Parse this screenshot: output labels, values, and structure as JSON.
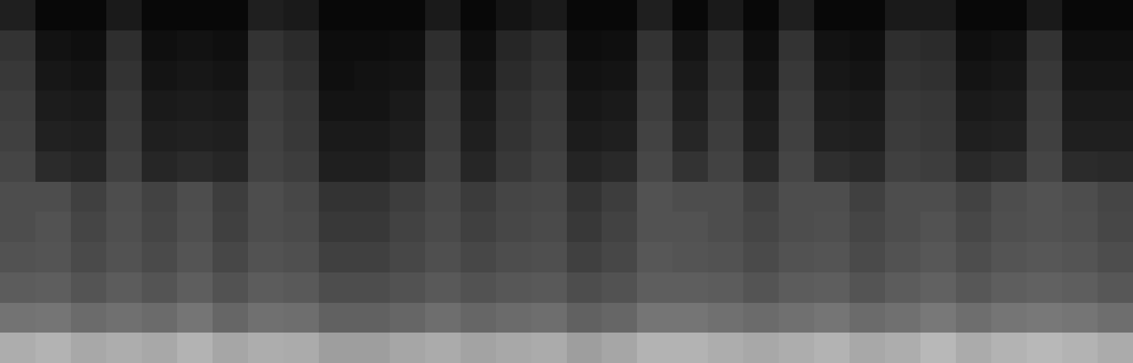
{
  "chart_data": {
    "type": "heatmap",
    "tick_labels": false,
    "grid": false,
    "x": [
      0,
      1,
      2,
      3,
      4,
      5,
      6,
      7,
      8,
      9,
      10,
      11,
      12,
      13,
      14,
      15,
      16,
      17,
      18,
      19,
      20,
      21,
      22,
      23,
      24,
      25,
      26,
      27,
      28,
      29,
      30,
      31
    ],
    "y": [
      0,
      1,
      2,
      3,
      4,
      5,
      6,
      7,
      8,
      9,
      10,
      11
    ],
    "xlim": [
      -0.5,
      31.5
    ],
    "ylim": [
      -0.5,
      11.5
    ],
    "zlim": [
      0,
      1
    ],
    "cells": [
      [
        0.68,
        0.7,
        0.66,
        0.68,
        0.66,
        0.7,
        0.65,
        0.68,
        0.67,
        0.62,
        0.62,
        0.65,
        0.67,
        0.64,
        0.66,
        0.67,
        0.62,
        0.65,
        0.7,
        0.7,
        0.68,
        0.66,
        0.68,
        0.7,
        0.66,
        0.68,
        0.72,
        0.67,
        0.7,
        0.72,
        0.7,
        0.67
      ],
      [
        0.45,
        0.46,
        0.42,
        0.44,
        0.42,
        0.46,
        0.4,
        0.44,
        0.43,
        0.38,
        0.38,
        0.4,
        0.43,
        0.4,
        0.42,
        0.43,
        0.38,
        0.4,
        0.46,
        0.46,
        0.44,
        0.42,
        0.44,
        0.46,
        0.42,
        0.44,
        0.47,
        0.43,
        0.46,
        0.47,
        0.46,
        0.43
      ],
      [
        0.36,
        0.37,
        0.33,
        0.36,
        0.33,
        0.37,
        0.32,
        0.36,
        0.35,
        0.3,
        0.3,
        0.32,
        0.35,
        0.32,
        0.34,
        0.35,
        0.3,
        0.32,
        0.37,
        0.37,
        0.36,
        0.33,
        0.36,
        0.37,
        0.33,
        0.36,
        0.38,
        0.34,
        0.37,
        0.38,
        0.37,
        0.34
      ],
      [
        0.32,
        0.33,
        0.29,
        0.32,
        0.29,
        0.33,
        0.28,
        0.32,
        0.31,
        0.25,
        0.25,
        0.28,
        0.31,
        0.28,
        0.3,
        0.31,
        0.25,
        0.28,
        0.34,
        0.33,
        0.32,
        0.29,
        0.32,
        0.33,
        0.29,
        0.32,
        0.34,
        0.3,
        0.33,
        0.34,
        0.33,
        0.3
      ],
      [
        0.3,
        0.32,
        0.27,
        0.31,
        0.27,
        0.31,
        0.25,
        0.3,
        0.29,
        0.22,
        0.22,
        0.26,
        0.29,
        0.25,
        0.28,
        0.29,
        0.22,
        0.26,
        0.32,
        0.32,
        0.3,
        0.27,
        0.3,
        0.31,
        0.27,
        0.3,
        0.32,
        0.28,
        0.31,
        0.32,
        0.31,
        0.28
      ],
      [
        0.3,
        0.3,
        0.25,
        0.3,
        0.26,
        0.3,
        0.24,
        0.3,
        0.28,
        0.2,
        0.2,
        0.24,
        0.28,
        0.23,
        0.27,
        0.28,
        0.2,
        0.24,
        0.32,
        0.3,
        0.3,
        0.25,
        0.3,
        0.3,
        0.25,
        0.3,
        0.3,
        0.26,
        0.3,
        0.32,
        0.3,
        0.27
      ],
      [
        0.27,
        0.17,
        0.15,
        0.25,
        0.15,
        0.17,
        0.15,
        0.26,
        0.24,
        0.12,
        0.12,
        0.15,
        0.25,
        0.15,
        0.22,
        0.25,
        0.14,
        0.16,
        0.28,
        0.2,
        0.26,
        0.16,
        0.27,
        0.18,
        0.16,
        0.25,
        0.24,
        0.16,
        0.18,
        0.27,
        0.17,
        0.16
      ],
      [
        0.25,
        0.13,
        0.12,
        0.23,
        0.12,
        0.13,
        0.12,
        0.25,
        0.22,
        0.1,
        0.1,
        0.12,
        0.23,
        0.12,
        0.2,
        0.23,
        0.11,
        0.12,
        0.26,
        0.15,
        0.24,
        0.12,
        0.25,
        0.13,
        0.12,
        0.23,
        0.22,
        0.12,
        0.13,
        0.25,
        0.12,
        0.12
      ],
      [
        0.24,
        0.11,
        0.1,
        0.22,
        0.1,
        0.11,
        0.1,
        0.24,
        0.21,
        0.08,
        0.08,
        0.1,
        0.22,
        0.1,
        0.19,
        0.22,
        0.09,
        0.1,
        0.24,
        0.12,
        0.22,
        0.1,
        0.24,
        0.11,
        0.1,
        0.22,
        0.21,
        0.1,
        0.11,
        0.24,
        0.1,
        0.1
      ],
      [
        0.22,
        0.09,
        0.08,
        0.2,
        0.08,
        0.09,
        0.08,
        0.22,
        0.19,
        0.06,
        0.07,
        0.08,
        0.2,
        0.08,
        0.17,
        0.2,
        0.07,
        0.08,
        0.22,
        0.1,
        0.2,
        0.08,
        0.22,
        0.09,
        0.08,
        0.2,
        0.19,
        0.08,
        0.09,
        0.22,
        0.08,
        0.08
      ],
      [
        0.2,
        0.07,
        0.06,
        0.18,
        0.06,
        0.07,
        0.06,
        0.2,
        0.17,
        0.05,
        0.05,
        0.06,
        0.18,
        0.06,
        0.15,
        0.18,
        0.05,
        0.06,
        0.2,
        0.08,
        0.18,
        0.06,
        0.2,
        0.07,
        0.06,
        0.18,
        0.17,
        0.06,
        0.07,
        0.2,
        0.06,
        0.06
      ],
      [
        0.12,
        0.03,
        0.03,
        0.1,
        0.03,
        0.03,
        0.03,
        0.12,
        0.1,
        0.03,
        0.03,
        0.03,
        0.1,
        0.03,
        0.08,
        0.1,
        0.03,
        0.03,
        0.12,
        0.03,
        0.1,
        0.03,
        0.12,
        0.03,
        0.03,
        0.1,
        0.1,
        0.03,
        0.03,
        0.1,
        0.03,
        0.03
      ]
    ]
  }
}
